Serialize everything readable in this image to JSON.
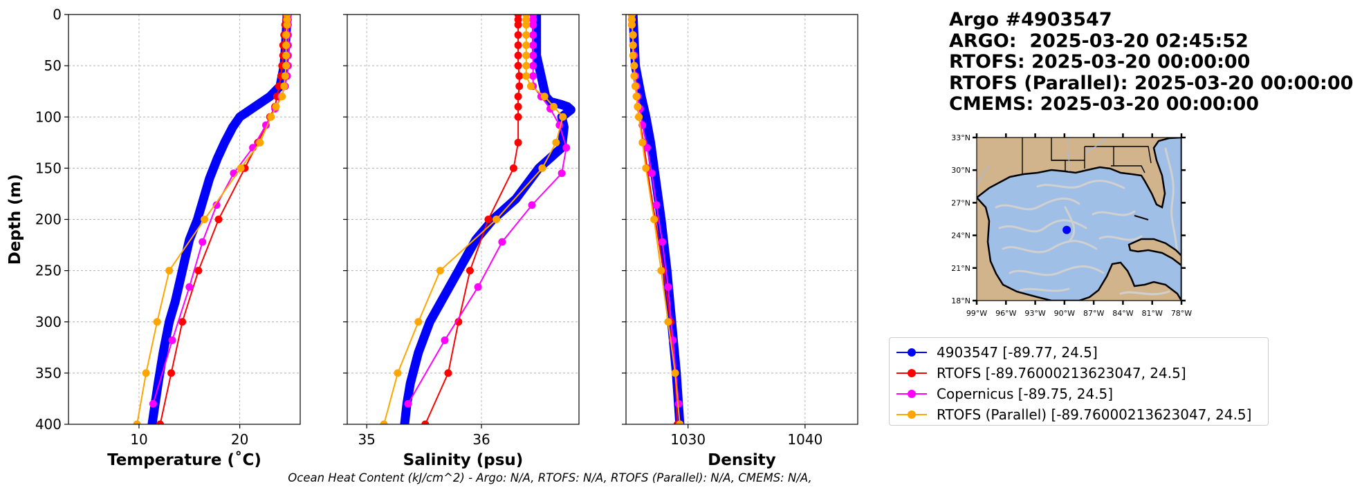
{
  "info": {
    "argo_title": "Argo #4903547",
    "argo_time": "ARGO:  2025-03-20 02:45:52",
    "rtofs_time": "RTOFS: 2025-03-20 00:00:00",
    "rtofs_parallel_time": "RTOFS (Parallel): 2025-03-20 00:00:00",
    "cmems_time": "CMEMS: 2025-03-20 00:00:00"
  },
  "caption": "Ocean Heat Content (kJ/cm^2) - Argo: N/A,  RTOFS: N/A,  RTOFS (Parallel): N/A,  CMEMS: N/A,",
  "colors": {
    "argo": "#0000ff",
    "rtofs": "#ff0000",
    "copernicus": "#ff00ff",
    "rtofs_parallel": "#ffa500",
    "land": "#d2b48c",
    "ocean": "#9fbfe6",
    "stream": "#d0d0d0"
  },
  "legend": [
    {
      "label": "4903547 [-89.77, 24.5]",
      "color": "#0000ff"
    },
    {
      "label": "RTOFS [-89.76000213623047, 24.5]",
      "color": "#ff0000"
    },
    {
      "label": "Copernicus [-89.75, 24.5]",
      "color": "#ff00ff"
    },
    {
      "label": "RTOFS (Parallel) [-89.76000213623047, 24.5]",
      "color": "#ffa500"
    }
  ],
  "chart_data": [
    {
      "type": "line",
      "xlabel": "Temperature (˚C)",
      "ylabel": "Depth (m)",
      "xlim": [
        3,
        26
      ],
      "ylim": [
        400,
        0
      ],
      "xticks": [
        "10",
        "20"
      ],
      "xtick_values": [
        10,
        20
      ],
      "yticks": [
        "0",
        "50",
        "100",
        "150",
        "200",
        "250",
        "300",
        "350",
        "400"
      ],
      "ytick_values": [
        0,
        50,
        100,
        150,
        200,
        250,
        300,
        350,
        400
      ],
      "grid": true,
      "series": [
        {
          "name": "4903547 [-89.77, 24.5]",
          "color": "#0000ff",
          "markers": false,
          "depth": [
            0,
            20,
            50,
            70,
            80,
            90,
            100,
            110,
            125,
            140,
            160,
            180,
            200,
            220,
            250,
            280,
            300,
            330,
            360,
            380,
            400
          ],
          "values": [
            24.7,
            24.6,
            24.4,
            24.0,
            23.0,
            21.5,
            20.0,
            19.3,
            18.5,
            17.8,
            17.0,
            16.4,
            15.8,
            15.0,
            14.3,
            13.6,
            13.0,
            12.4,
            11.9,
            11.6,
            11.3
          ]
        },
        {
          "name": "RTOFS [-89.76000213623047, 24.5]",
          "color": "#ff0000",
          "markers": true,
          "depth": [
            0,
            5,
            10,
            20,
            30,
            40,
            50,
            60,
            70,
            80,
            90,
            100,
            125,
            150,
            200,
            250,
            300,
            350,
            400
          ],
          "values": [
            24.6,
            24.6,
            24.5,
            24.4,
            24.3,
            24.3,
            24.2,
            24.1,
            23.9,
            23.7,
            23.5,
            23.0,
            21.8,
            20.5,
            17.9,
            15.9,
            14.3,
            13.2,
            12.1
          ]
        },
        {
          "name": "Copernicus [-89.75, 24.5]",
          "color": "#ff00ff",
          "markers": true,
          "depth": [
            0,
            5,
            10,
            20,
            30,
            40,
            50,
            60,
            70,
            80,
            92,
            108,
            130,
            155,
            186,
            222,
            266,
            318,
            380
          ],
          "values": [
            24.8,
            24.8,
            24.8,
            24.8,
            24.8,
            24.8,
            24.8,
            24.7,
            24.5,
            24.1,
            23.5,
            22.6,
            21.3,
            19.4,
            17.7,
            16.3,
            15.0,
            13.3,
            11.4
          ]
        },
        {
          "name": "RTOFS (Parallel) [-89.76000213623047, 24.5]",
          "color": "#ffa500",
          "markers": true,
          "depth": [
            0,
            5,
            10,
            20,
            30,
            40,
            50,
            60,
            70,
            80,
            90,
            100,
            125,
            150,
            200,
            250,
            300,
            350,
            400
          ],
          "values": [
            24.7,
            24.7,
            24.7,
            24.6,
            24.6,
            24.6,
            24.6,
            24.5,
            24.4,
            24.2,
            23.6,
            23.1,
            22.0,
            20.1,
            16.5,
            13.0,
            11.8,
            10.7,
            9.8
          ]
        }
      ]
    },
    {
      "type": "line",
      "xlabel": "Salinity (psu)",
      "xlim": [
        34.83,
        36.85
      ],
      "ylim": [
        400,
        0
      ],
      "xticks": [
        "35",
        "36"
      ],
      "xtick_values": [
        35,
        36
      ],
      "grid": true,
      "series": [
        {
          "name": "4903547 [-89.77, 24.5]",
          "color": "#0000ff",
          "markers": false,
          "depth": [
            0,
            20,
            40,
            50,
            60,
            70,
            80,
            85,
            88,
            90,
            93,
            100,
            110,
            130,
            150,
            180,
            200,
            220,
            250,
            280,
            300,
            330,
            360,
            380,
            400
          ],
          "values": [
            36.48,
            36.48,
            36.48,
            36.5,
            36.52,
            36.54,
            36.56,
            36.6,
            36.7,
            36.75,
            36.78,
            36.7,
            36.72,
            36.7,
            36.5,
            36.3,
            36.1,
            35.95,
            35.8,
            35.65,
            35.55,
            35.45,
            35.38,
            35.35,
            35.33
          ]
        },
        {
          "name": "RTOFS [-89.76000213623047, 24.5]",
          "color": "#ff0000",
          "markers": true,
          "depth": [
            0,
            5,
            10,
            20,
            30,
            40,
            50,
            60,
            70,
            80,
            90,
            100,
            125,
            150,
            200,
            250,
            300,
            350,
            400
          ],
          "values": [
            36.32,
            36.32,
            36.32,
            36.32,
            36.32,
            36.32,
            36.32,
            36.33,
            36.33,
            36.32,
            36.32,
            36.32,
            36.32,
            36.28,
            36.06,
            35.9,
            35.8,
            35.71,
            35.51
          ]
        },
        {
          "name": "Copernicus [-89.75, 24.5]",
          "color": "#ff00ff",
          "markers": true,
          "depth": [
            0,
            5,
            10,
            20,
            30,
            40,
            50,
            60,
            70,
            80,
            92,
            108,
            130,
            155,
            186,
            222,
            266,
            318,
            380
          ],
          "values": [
            36.45,
            36.45,
            36.45,
            36.45,
            36.45,
            36.45,
            36.45,
            36.45,
            36.45,
            36.52,
            36.6,
            36.68,
            36.74,
            36.7,
            36.44,
            36.18,
            35.97,
            35.68,
            35.36
          ]
        },
        {
          "name": "RTOFS (Parallel) [-89.76000213623047, 24.5]",
          "color": "#ffa500",
          "markers": true,
          "depth": [
            0,
            5,
            10,
            20,
            30,
            40,
            50,
            60,
            70,
            80,
            90,
            100,
            125,
            150,
            200,
            250,
            300,
            350,
            400
          ],
          "values": [
            36.39,
            36.39,
            36.39,
            36.39,
            36.39,
            36.39,
            36.39,
            36.39,
            36.43,
            36.55,
            36.63,
            36.71,
            36.65,
            36.53,
            36.13,
            35.64,
            35.45,
            35.27,
            35.15
          ]
        }
      ]
    },
    {
      "type": "line",
      "xlabel": "Density",
      "xlim": [
        1024.7,
        1044.5
      ],
      "ylim": [
        400,
        0
      ],
      "xticks": [
        "1030",
        "1040"
      ],
      "xtick_values": [
        1030,
        1040
      ],
      "grid": true,
      "series": [
        {
          "name": "4903547 [-89.77, 24.5]",
          "color": "#0000ff",
          "markers": false,
          "depth": [
            0,
            50,
            80,
            100,
            125,
            150,
            200,
            250,
            300,
            350,
            400
          ],
          "values": [
            1025.3,
            1025.5,
            1026.0,
            1026.4,
            1026.8,
            1027.1,
            1027.7,
            1028.2,
            1028.6,
            1029.0,
            1029.3
          ]
        },
        {
          "name": "RTOFS [-89.76000213623047, 24.5]",
          "color": "#ff0000",
          "markers": true,
          "depth": [
            0,
            5,
            10,
            20,
            30,
            40,
            50,
            60,
            70,
            80,
            90,
            100,
            125,
            150,
            200,
            250,
            300,
            350,
            400
          ],
          "values": [
            1025.2,
            1025.2,
            1025.2,
            1025.3,
            1025.3,
            1025.4,
            1025.4,
            1025.5,
            1025.5,
            1025.6,
            1025.7,
            1025.8,
            1026.2,
            1026.5,
            1027.2,
            1027.9,
            1028.5,
            1028.9,
            1029.1
          ]
        },
        {
          "name": "Copernicus [-89.75, 24.5]",
          "color": "#ff00ff",
          "markers": true,
          "depth": [
            0,
            5,
            10,
            20,
            30,
            40,
            50,
            60,
            70,
            80,
            92,
            108,
            130,
            155,
            186,
            222,
            266,
            318,
            380
          ],
          "values": [
            1025.2,
            1025.2,
            1025.2,
            1025.3,
            1025.3,
            1025.4,
            1025.4,
            1025.5,
            1025.6,
            1025.7,
            1025.9,
            1026.1,
            1026.5,
            1026.9,
            1027.3,
            1027.8,
            1028.3,
            1028.7,
            1029.2
          ]
        },
        {
          "name": "RTOFS (Parallel) [-89.76000213623047, 24.5]",
          "color": "#ffa500",
          "markers": true,
          "depth": [
            0,
            5,
            10,
            20,
            30,
            40,
            50,
            60,
            70,
            80,
            90,
            100,
            125,
            150,
            200,
            250,
            300,
            350,
            400
          ],
          "values": [
            1025.2,
            1025.2,
            1025.2,
            1025.3,
            1025.3,
            1025.3,
            1025.4,
            1025.4,
            1025.5,
            1025.6,
            1025.7,
            1025.8,
            1026.1,
            1026.4,
            1027.1,
            1027.7,
            1028.3,
            1028.9,
            1029.3
          ]
        }
      ]
    }
  ],
  "map": {
    "lat_labels": [
      "33°N",
      "30°N",
      "27°N",
      "24°N",
      "21°N",
      "18°N"
    ],
    "lon_labels": [
      "99°W",
      "96°W",
      "93°W",
      "90°W",
      "87°W",
      "84°W",
      "81°W",
      "78°W"
    ],
    "lon_range": [
      -99,
      -78
    ],
    "lat_range": [
      18,
      33
    ],
    "float_position": {
      "lon": -89.77,
      "lat": 24.5
    }
  }
}
